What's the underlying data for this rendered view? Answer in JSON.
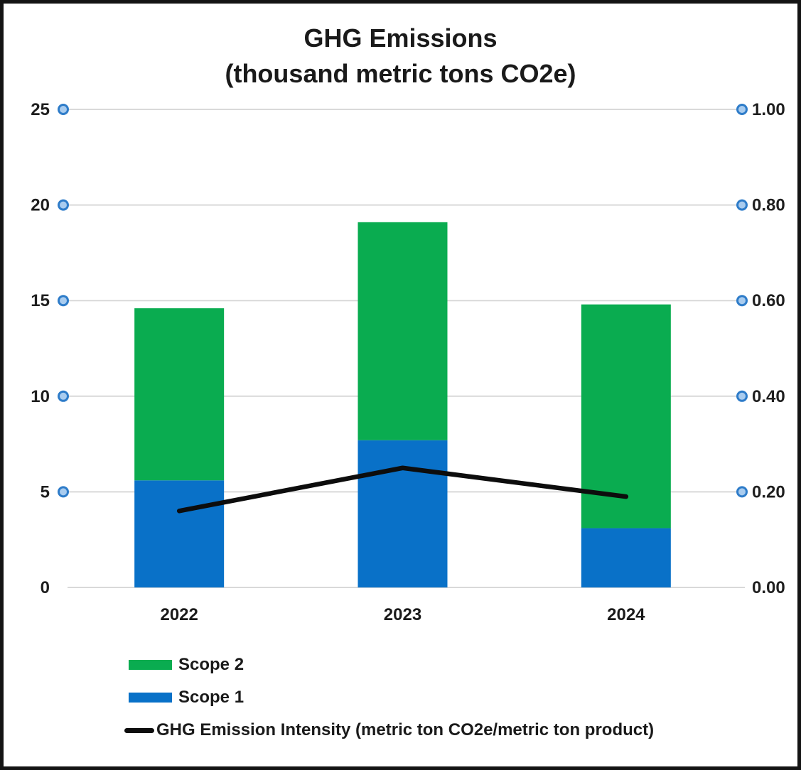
{
  "title": {
    "line1": "GHG Emissions",
    "line2": "(thousand metric tons CO2e)"
  },
  "chart_data": {
    "type": "combo",
    "subtypes": [
      "stacked-bar",
      "line"
    ],
    "title": "GHG Emissions (thousand metric tons CO2e)",
    "categories": [
      "2022",
      "2023",
      "2024"
    ],
    "series": [
      {
        "name": "Scope 1",
        "type": "bar",
        "stack_order": 0,
        "axis": "left",
        "color": "#0971C8",
        "values": [
          5.6,
          7.7,
          3.1
        ]
      },
      {
        "name": "Scope 2",
        "type": "bar",
        "stack_order": 1,
        "axis": "left",
        "color": "#0AAC50",
        "values": [
          9.0,
          11.4,
          11.7
        ]
      },
      {
        "name": "GHG Emission Intensity (metric ton CO2e/metric ton product)",
        "type": "line",
        "axis": "right",
        "color": "#0d0d0d",
        "values": [
          0.16,
          0.25,
          0.19
        ]
      }
    ],
    "stacked_totals": [
      14.6,
      19.1,
      14.8
    ],
    "left_axis": {
      "ticks": [
        0,
        5,
        10,
        15,
        20,
        25
      ],
      "range": [
        0,
        25
      ]
    },
    "right_axis": {
      "ticks": [
        "0.00",
        "0.20",
        "0.40",
        "0.60",
        "0.80",
        "1.00"
      ],
      "range": [
        0,
        1
      ]
    },
    "grid": true,
    "gridline_color": "#D9D9D9",
    "gridline_marker": {
      "fill": "#A9CCEF",
      "stroke": "#2E7CC9"
    },
    "legend_position": "bottom-left"
  },
  "legend": {
    "items": [
      {
        "label": "Scope 2",
        "color": "#0AAC50",
        "marker": "square"
      },
      {
        "label": "Scope 1",
        "color": "#0971C8",
        "marker": "square"
      },
      {
        "label": "GHG Emission Intensity (metric ton CO2e/metric ton product)",
        "color": "#0d0d0d",
        "marker": "line"
      }
    ]
  },
  "colors": {
    "scope1_blue": "#0971C8",
    "scope2_green": "#0AAC50",
    "intensity_line": "#0d0d0d",
    "gridline": "#D9D9D9",
    "marker_fill": "#A9CCEF",
    "marker_stroke": "#2E7CC9",
    "text": "#1a1a1a",
    "frame_border": "#141414"
  }
}
